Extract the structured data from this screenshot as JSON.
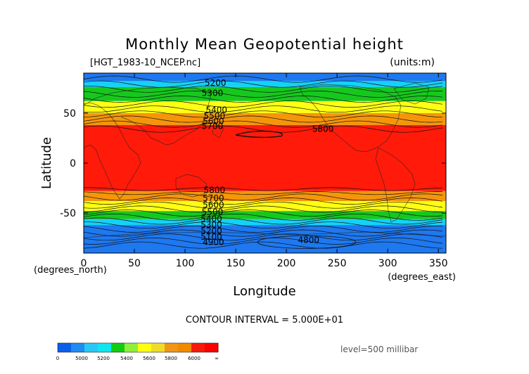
{
  "chart_data": {
    "type": "heatmap",
    "title": "Monthly Mean Geopotential height",
    "file_label": "[HGT_1983-10_NCEP.nc]",
    "units_label": "(units:m)",
    "xlabel": "Longitude",
    "ylabel": "Latitude",
    "x_unit_label": "(degrees_east)",
    "y_unit_label": "(degrees_north)",
    "xlim": [
      0,
      357.5
    ],
    "ylim": [
      -90,
      90
    ],
    "x_ticks": [
      0,
      50,
      100,
      150,
      200,
      250,
      300,
      350
    ],
    "y_ticks": [
      -50,
      0,
      50
    ],
    "contour_interval_text": "CONTOUR INTERVAL = 5.000E+01",
    "level_text": "level=500 millibar",
    "contour_labels": [
      {
        "text": "5200",
        "lon": 130,
        "lat": 80
      },
      {
        "text": "5300",
        "lon": 127,
        "lat": 70
      },
      {
        "text": "5400",
        "lon": 131,
        "lat": 53
      },
      {
        "text": "5500",
        "lon": 129,
        "lat": 47
      },
      {
        "text": "5600",
        "lon": 128,
        "lat": 42
      },
      {
        "text": "5700",
        "lon": 127,
        "lat": 37
      },
      {
        "text": "5800",
        "lon": 236,
        "lat": 34
      },
      {
        "text": "5800",
        "lon": 129,
        "lat": -27
      },
      {
        "text": "5700",
        "lon": 128,
        "lat": -35
      },
      {
        "text": "5600",
        "lon": 128,
        "lat": -42
      },
      {
        "text": "5500",
        "lon": 127,
        "lat": -49
      },
      {
        "text": "5400",
        "lon": 126,
        "lat": -56
      },
      {
        "text": "5300",
        "lon": 126,
        "lat": -62
      },
      {
        "text": "5200",
        "lon": 126,
        "lat": -68
      },
      {
        "text": "5100",
        "lon": 126,
        "lat": -74
      },
      {
        "text": "4900",
        "lon": 128,
        "lat": -79
      },
      {
        "text": "4800",
        "lon": 222,
        "lat": -77
      }
    ],
    "lat_bands": [
      {
        "lat_from": 90,
        "lat_to": 82,
        "bin": 0
      },
      {
        "lat_from": 82,
        "lat_to": 76,
        "bin": 1
      },
      {
        "lat_from": 76,
        "lat_to": 62,
        "bin": 2
      },
      {
        "lat_from": 62,
        "lat_to": 50,
        "bin": 3
      },
      {
        "lat_from": 50,
        "lat_to": 38,
        "bin": 4
      },
      {
        "lat_from": 38,
        "lat_to": -28,
        "bin": 5
      },
      {
        "lat_from": -28,
        "lat_to": -38,
        "bin": 4
      },
      {
        "lat_from": -38,
        "lat_to": -48,
        "bin": 3
      },
      {
        "lat_from": -48,
        "lat_to": -56,
        "bin": 2
      },
      {
        "lat_from": -56,
        "lat_to": -62,
        "bin": 1
      },
      {
        "lat_from": -62,
        "lat_to": -90,
        "bin": 0
      }
    ],
    "colorbar": {
      "labels": [
        "0",
        "5000",
        "5200",
        "5400",
        "5600",
        "5800",
        "6000",
        "∞"
      ],
      "colors": [
        "#0a5fe8",
        "#1e8cf0",
        "#28c8f5",
        "#10e6f0",
        "#12cc12",
        "#8ef03a",
        "#ffff10",
        "#f0dc28",
        "#f09618",
        "#f28a00",
        "#f51a0a",
        "#ff0000"
      ],
      "bins": [
        {
          "color": "#1e78f0",
          "label": "< 5200"
        },
        {
          "color": "#14d2f5",
          "label": "5200-5400"
        },
        {
          "color": "#16c81e",
          "label": "5400-5600"
        },
        {
          "color": "#ffff14",
          "label": "5600-5800"
        },
        {
          "color": "#f5960a",
          "label": "5800-6000"
        },
        {
          "color": "#ff1a0a",
          "label": "> 6000"
        }
      ]
    }
  }
}
